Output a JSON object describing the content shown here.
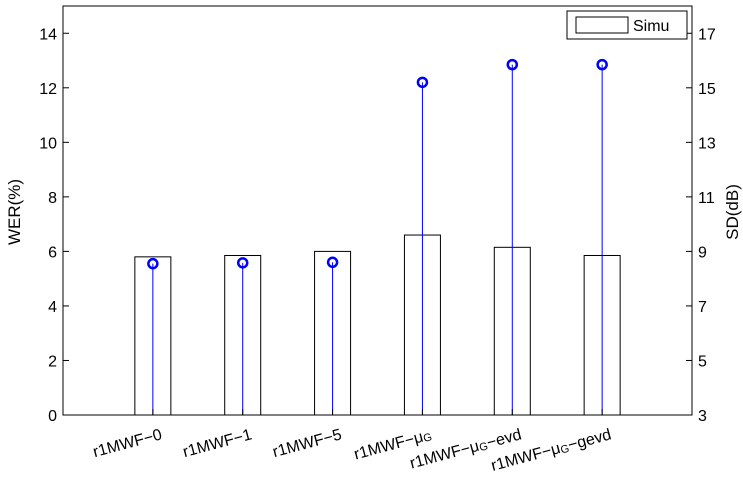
{
  "chart_data": {
    "type": "bar",
    "categories": [
      "r1MWF−0",
      "r1MWF−1",
      "r1MWF−5",
      "r1MWF−μG",
      "r1MWF−μG−evd",
      "r1MWF−μG−gevd"
    ],
    "category_parts": [
      {
        "main": "r1MWF−0",
        "sub": "",
        "tail": ""
      },
      {
        "main": "r1MWF−1",
        "sub": "",
        "tail": ""
      },
      {
        "main": "r1MWF−5",
        "sub": "",
        "tail": ""
      },
      {
        "main": "r1MWF−μ",
        "sub": "G",
        "tail": ""
      },
      {
        "main": "r1MWF−μ",
        "sub": "G",
        "tail": "−evd"
      },
      {
        "main": "r1MWF−μ",
        "sub": "G",
        "tail": "−gevd"
      }
    ],
    "series": [
      {
        "name": "Simu",
        "axis": "left",
        "kind": "bar",
        "values": [
          5.8,
          5.85,
          6.0,
          6.6,
          6.15,
          5.85
        ]
      },
      {
        "axis": "right",
        "kind": "stem",
        "color": "#0000ff",
        "values": [
          8.55,
          8.58,
          8.6,
          15.2,
          15.85,
          15.85
        ]
      }
    ],
    "ylabel": "WER(%)",
    "ylabel_right": "SD(dB)",
    "ylim": [
      0,
      15
    ],
    "ylim_right": [
      3,
      18
    ],
    "yticks": [
      0,
      2,
      4,
      6,
      8,
      10,
      12,
      14
    ],
    "yticks_right": [
      3,
      5,
      7,
      9,
      11,
      13,
      15,
      17
    ],
    "legend_position": "top-right",
    "grid": false,
    "bar_face": "#ffffff",
    "bar_edge": "#000000",
    "stem_color": "#0000ff"
  }
}
